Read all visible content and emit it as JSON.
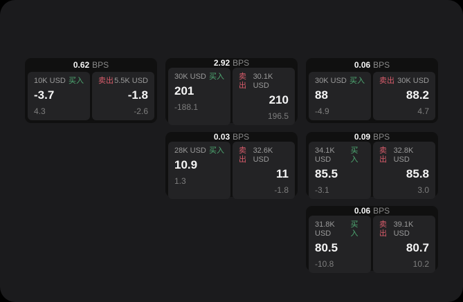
{
  "colors": {
    "page_bg": "#000000",
    "panel_bg": "#1b1b1d",
    "card_bg": "#101010",
    "tile_bg": "#232325",
    "buy_green": "#4faa73",
    "sell_red": "#d95c6b"
  },
  "labels": {
    "bps_unit": "BPS",
    "buy": "买入",
    "sell": "卖出"
  },
  "cards": [
    {
      "row": 1,
      "col": 1,
      "bps": "0.62",
      "buy": {
        "amount": "10K USD",
        "value": "-3.7",
        "sub": "4.3"
      },
      "sell": {
        "amount": "5.5K USD",
        "value": "-1.8",
        "sub": "-2.6"
      }
    },
    {
      "row": 1,
      "col": 2,
      "bps": "2.92",
      "buy": {
        "amount": "30K USD",
        "value": "201",
        "sub": "-188.1"
      },
      "sell": {
        "amount": "30.1K USD",
        "value": "210",
        "sub": "196.5"
      }
    },
    {
      "row": 1,
      "col": 3,
      "bps": "0.06",
      "buy": {
        "amount": "30K USD",
        "value": "88",
        "sub": "-4.9"
      },
      "sell": {
        "amount": "30K USD",
        "value": "88.2",
        "sub": "4.7"
      }
    },
    {
      "row": 2,
      "col": 2,
      "bps": "0.03",
      "buy": {
        "amount": "28K USD",
        "value": "10.9",
        "sub": "1.3"
      },
      "sell": {
        "amount": "32.6K USD",
        "value": "11",
        "sub": "-1.8"
      }
    },
    {
      "row": 2,
      "col": 3,
      "bps": "0.09",
      "buy": {
        "amount": "34.1K USD",
        "value": "85.5",
        "sub": "-3.1"
      },
      "sell": {
        "amount": "32.8K USD",
        "value": "85.8",
        "sub": "3.0"
      }
    },
    {
      "row": 3,
      "col": 3,
      "bps": "0.06",
      "buy": {
        "amount": "31.8K USD",
        "value": "80.5",
        "sub": "-10.8"
      },
      "sell": {
        "amount": "39.1K USD",
        "value": "80.7",
        "sub": "10.2"
      }
    }
  ]
}
